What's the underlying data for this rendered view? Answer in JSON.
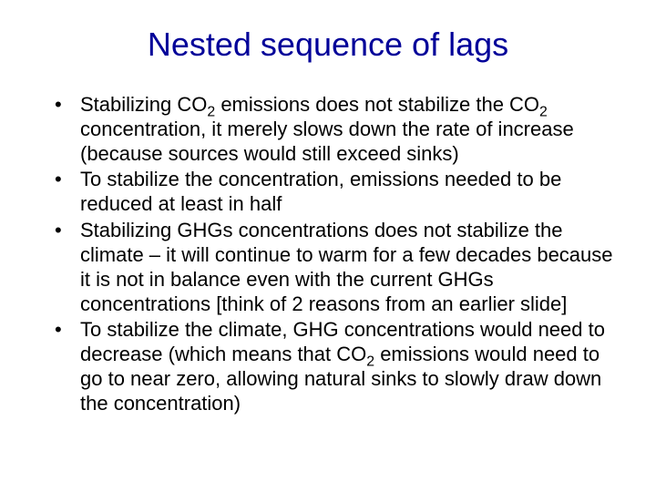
{
  "title_color": "#000099",
  "body_color": "#000000",
  "background_color": "#ffffff",
  "title": "Nested sequence of lags",
  "bullets": [
    {
      "pre1": "Stabilizing CO",
      "sub1": "2",
      "mid1": " emissions does not stabilize the CO",
      "sub2": "2",
      "post": " concentration, it merely slows down the rate of increase (because sources would still exceed sinks)"
    },
    {
      "text": "To stabilize the concentration, emissions needed to be reduced at least in half"
    },
    {
      "text": "Stabilizing GHGs concentrations does not stabilize the climate – it will continue to warm for a few decades because it is not in balance even with the current GHGs concentrations [think of 2 reasons from an earlier slide]"
    },
    {
      "pre1": "To stabilize the climate, GHG concentrations would need to decrease (which means that CO",
      "sub1": "2",
      "post": " emissions would need to go to near zero, allowing natural sinks to slowly draw down the concentration)"
    }
  ]
}
